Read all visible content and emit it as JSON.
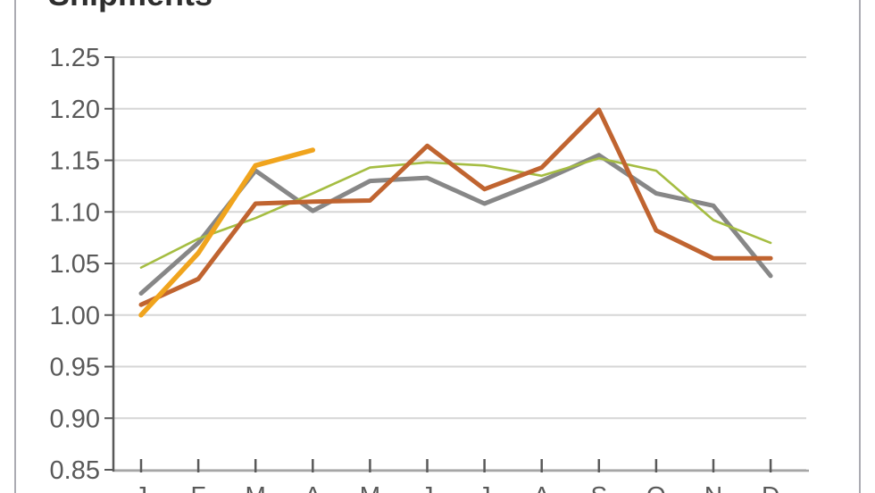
{
  "title": {
    "text": "Shipments"
  },
  "chart_data": {
    "type": "line",
    "title": "Shipments",
    "xlabel": "",
    "ylabel": "",
    "categories": [
      "J",
      "F",
      "M",
      "A",
      "M",
      "J",
      "J",
      "A",
      "S",
      "O",
      "N",
      "D"
    ],
    "ylim": [
      0.85,
      1.25
    ],
    "ytick_step": 0.05,
    "ytick_labels": [
      "1.25",
      "1.20",
      "1.15",
      "1.10",
      "1.05",
      "1.00",
      "0.95",
      "0.90",
      "0.85"
    ],
    "grid": "horizontal",
    "legend_position": "none",
    "series": [
      {
        "name": "gray",
        "color": "#878787",
        "stroke_width": 5,
        "values": [
          1.021,
          1.07,
          1.14,
          1.101,
          1.13,
          1.133,
          1.108,
          1.13,
          1.155,
          1.118,
          1.106,
          1.038
        ]
      },
      {
        "name": "yellow-green",
        "color": "#A5BD42",
        "stroke_width": 2.6,
        "values": [
          1.046,
          1.074,
          1.094,
          1.118,
          1.143,
          1.148,
          1.145,
          1.135,
          1.152,
          1.14,
          1.092,
          1.07
        ]
      },
      {
        "name": "dark-orange",
        "color": "#C06430",
        "stroke_width": 5,
        "values": [
          1.01,
          1.035,
          1.108,
          1.11,
          1.111,
          1.164,
          1.122,
          1.143,
          1.199,
          1.082,
          1.055,
          1.055
        ]
      },
      {
        "name": "amber",
        "color": "#F0A41D",
        "stroke_width": 5.5,
        "values": [
          1.0,
          1.06,
          1.145,
          1.16,
          null,
          null,
          null,
          null,
          null,
          null,
          null,
          null
        ]
      }
    ],
    "colors": {
      "gridline": "#D6D6D6",
      "y_axis_line": "#595959",
      "x_axis_line": "#A6A6A6",
      "tick": "#595959",
      "axis_label": "#595959",
      "title": "#2E2E2E",
      "frame": "#ABABB2",
      "background": "#FFFFFF"
    }
  }
}
